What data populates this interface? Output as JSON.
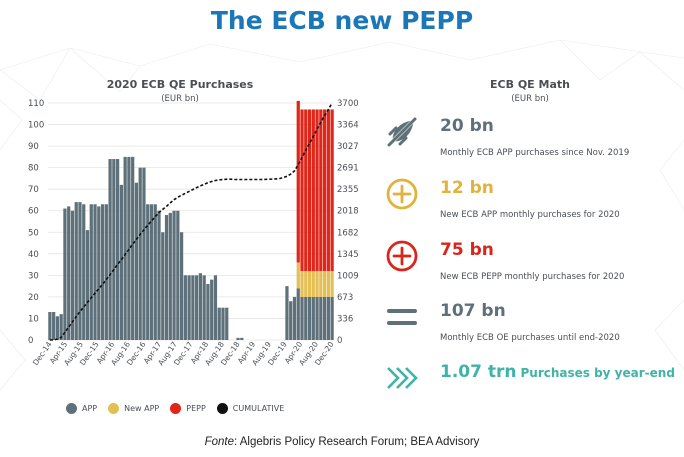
{
  "title": "The ECB new PEPP",
  "colors": {
    "title": "#1b77b8",
    "app": "#5e717a",
    "new_app": "#e3bf55",
    "pepp": "#e0261b",
    "cumulative": "#111111",
    "math_gray": "#5e717a",
    "math_yellow": "#e2b23c",
    "math_red": "#d9261c",
    "math_teal": "#3fb3a8"
  },
  "chart_data": {
    "type": "bar",
    "title": "2020 ECB QE Purchases",
    "subtitle": "(EUR bn)",
    "left_axis": {
      "ylim": [
        0,
        110
      ],
      "ticks": [
        0,
        10,
        20,
        30,
        40,
        50,
        60,
        70,
        80,
        90,
        100,
        110
      ]
    },
    "right_axis": {
      "ylim": [
        0,
        3700
      ],
      "ticks": [
        "0",
        "336",
        "673",
        "1009",
        "1345",
        "1682",
        "2018",
        "2355",
        "2691",
        "3027",
        "3364",
        "3700"
      ]
    },
    "x_tick_labels": [
      "Dec-14",
      "Apr-15",
      "Aug-15",
      "Dec-15",
      "Apr-16",
      "Aug-16",
      "Dec-16",
      "Apr-17",
      "Aug-17",
      "Dec-17",
      "Apr-18",
      "Aug-18",
      "Dec-18",
      "Apr-19",
      "Aug-19",
      "Dec-19",
      "Apr-20",
      "Aug-20",
      "Dec-20"
    ],
    "grid": true,
    "legend_position": "bottom",
    "legend": [
      "APP",
      "New APP",
      "PEPP",
      "CUMULATIVE"
    ],
    "series": [
      {
        "name": "APP",
        "values": [
          13,
          13,
          11,
          12,
          61,
          62,
          60,
          64,
          64,
          63,
          51,
          63,
          63,
          62,
          63,
          63,
          84,
          84,
          84,
          72,
          85,
          85,
          85,
          73,
          80,
          80,
          63,
          63,
          63,
          60,
          50,
          58,
          59,
          60,
          60,
          50,
          30,
          30,
          30,
          30,
          31,
          30,
          26,
          28,
          30,
          15,
          15,
          15,
          0,
          0,
          1,
          1,
          0,
          0,
          0,
          0,
          0,
          0,
          0,
          0,
          0,
          0,
          0,
          25,
          18,
          20,
          24,
          20,
          20,
          20,
          20,
          20,
          20,
          20,
          20,
          20
        ]
      },
      {
        "name": "New APP",
        "values": [
          0,
          0,
          0,
          0,
          0,
          0,
          0,
          0,
          0,
          0,
          0,
          0,
          0,
          0,
          0,
          0,
          0,
          0,
          0,
          0,
          0,
          0,
          0,
          0,
          0,
          0,
          0,
          0,
          0,
          0,
          0,
          0,
          0,
          0,
          0,
          0,
          0,
          0,
          0,
          0,
          0,
          0,
          0,
          0,
          0,
          0,
          0,
          0,
          0,
          0,
          0,
          0,
          0,
          0,
          0,
          0,
          0,
          0,
          0,
          0,
          0,
          0,
          0,
          0,
          0,
          0,
          12,
          12,
          12,
          12,
          12,
          12,
          12,
          12,
          12,
          12
        ]
      },
      {
        "name": "PEPP",
        "values": [
          0,
          0,
          0,
          0,
          0,
          0,
          0,
          0,
          0,
          0,
          0,
          0,
          0,
          0,
          0,
          0,
          0,
          0,
          0,
          0,
          0,
          0,
          0,
          0,
          0,
          0,
          0,
          0,
          0,
          0,
          0,
          0,
          0,
          0,
          0,
          0,
          0,
          0,
          0,
          0,
          0,
          0,
          0,
          0,
          0,
          0,
          0,
          0,
          0,
          0,
          0,
          0,
          0,
          0,
          0,
          0,
          0,
          0,
          0,
          0,
          0,
          0,
          0,
          0,
          0,
          0,
          75,
          75,
          75,
          75,
          75,
          75,
          75,
          75,
          75,
          75
        ]
      },
      {
        "name": "CUMULATIVE",
        "axis": "right",
        "values": [
          0,
          2,
          14,
          40,
          120,
          200,
          285,
          365,
          445,
          515,
          590,
          660,
          730,
          800,
          870,
          945,
          1020,
          1100,
          1180,
          1255,
          1335,
          1415,
          1495,
          1570,
          1650,
          1720,
          1790,
          1860,
          1925,
          1990,
          2040,
          2085,
          2140,
          2190,
          2230,
          2260,
          2290,
          2320,
          2350,
          2380,
          2405,
          2430,
          2455,
          2475,
          2490,
          2500,
          2505,
          2510,
          2510,
          2505,
          2505,
          2505,
          2505,
          2505,
          2505,
          2505,
          2505,
          2508,
          2510,
          2512,
          2515,
          2520,
          2535,
          2555,
          2590,
          2640,
          2740,
          2850,
          2960,
          3070,
          3180,
          3290,
          3400,
          3500,
          3600,
          3700
        ]
      }
    ]
  },
  "math": {
    "title": "ECB QE Math",
    "subtitle": "(EUR bn)",
    "items": [
      {
        "icon": "no-rocket-icon",
        "value": "20 bn",
        "desc": "Monthly ECB APP purchases since Nov. 2019"
      },
      {
        "icon": "plus-circle-icon",
        "value": "12 bn",
        "desc": "New ECB APP monthly purchases for 2020"
      },
      {
        "icon": "plus-circle-icon",
        "value": "75 bn",
        "desc": "New ECB PEPP monthly  purchases for 2020"
      },
      {
        "icon": "equals-icon",
        "value": "107 bn",
        "desc": "Monthly ECB OE purchases until end-2020"
      }
    ],
    "total": {
      "icon": "double-chevron-right-icon",
      "value": "1.07 trn",
      "desc": "Purchases by year-end"
    }
  },
  "source": {
    "prefix": "Fonte",
    "text": ": Algebris Policy Research Forum; BEA Advisory"
  }
}
